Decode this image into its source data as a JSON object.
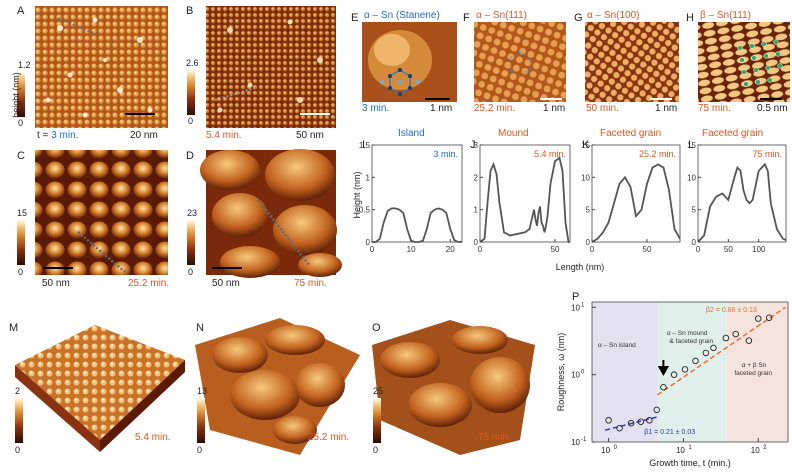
{
  "panels": {
    "A": {
      "letter": "A",
      "cbar_max": "1.2",
      "cbar_min": "0",
      "time": "t = 3 min.",
      "time_prefix": "t = ",
      "time_value": "3 min.",
      "scale": "20 nm",
      "cbar_title": "height (nm)"
    },
    "B": {
      "letter": "B",
      "cbar_max": "2.6",
      "cbar_min": "0",
      "time": "5.4 min.",
      "scale": "50 nm"
    },
    "C": {
      "letter": "C",
      "cbar_max": "15",
      "cbar_min": "0",
      "time": "25.2 min.",
      "scale": "50 nm"
    },
    "D": {
      "letter": "D",
      "cbar_max": "23",
      "cbar_min": "0",
      "time": "75 min.",
      "scale": "50 nm"
    },
    "E": {
      "letter": "E",
      "title": "α – Sn (Stanene)",
      "time": "3 min.",
      "scale": "1 nm"
    },
    "F": {
      "letter": "F",
      "title": "α – Sn(111)",
      "time": "25.2 min.",
      "scale": "1 nm"
    },
    "G": {
      "letter": "G",
      "title": "α – Sn(100)",
      "time": "50 min.",
      "scale": "1 nm"
    },
    "H": {
      "letter": "H",
      "title": "β – Sn(111)",
      "time": "75 min.",
      "scale": "0.5 nm"
    },
    "M": {
      "letter": "M",
      "cbar_max": "2",
      "cbar_min": "0",
      "time": "5.4 min."
    },
    "N": {
      "letter": "N",
      "cbar_max": "13",
      "cbar_min": "0",
      "time": "25.2 min."
    },
    "O": {
      "letter": "O",
      "cbar_max": "25",
      "cbar_min": "0",
      "time": "75 min."
    }
  },
  "profiles": {
    "ylabel": "Height (nm)",
    "xlabel": "Length (nm)",
    "I": {
      "letter": "I",
      "title": "Island",
      "time": "3 min."
    },
    "J": {
      "letter": "J",
      "title": "Mound",
      "time": "5.4 min."
    },
    "K": {
      "letter": "K",
      "title": "Faceted grain",
      "time": "25.2 min."
    },
    "L": {
      "letter": "L",
      "title": "Faceted grain",
      "time": "75 min."
    }
  },
  "chart_data": [
    {
      "type": "line",
      "panel": "I",
      "title": "Island",
      "xlabel": "Length (nm)",
      "ylabel": "Height (nm)",
      "xlim": [
        0,
        23
      ],
      "ylim": [
        0,
        1.5
      ],
      "xticks": [
        0,
        10,
        20
      ],
      "yticks": [
        0,
        0.5,
        1,
        1.5
      ],
      "x": [
        0,
        1,
        2,
        3,
        4,
        5,
        6,
        7,
        8,
        9,
        10,
        11,
        12,
        13,
        14,
        15,
        16,
        17,
        18,
        19,
        20,
        21,
        22,
        23
      ],
      "y": [
        0.0,
        0.0,
        0.05,
        0.3,
        0.48,
        0.52,
        0.52,
        0.5,
        0.45,
        0.2,
        0.02,
        0.0,
        0.0,
        0.02,
        0.2,
        0.45,
        0.5,
        0.52,
        0.5,
        0.45,
        0.2,
        0.03,
        0.0,
        0.0
      ]
    },
    {
      "type": "line",
      "panel": "J",
      "title": "Mound",
      "xlabel": "Length (nm)",
      "ylabel": "",
      "xlim": [
        0,
        60
      ],
      "ylim": [
        0,
        3
      ],
      "xticks": [
        0,
        50
      ],
      "yticks": [
        0,
        1,
        2,
        3
      ],
      "x": [
        0,
        3,
        5,
        7,
        9,
        11,
        13,
        16,
        20,
        25,
        30,
        33,
        35,
        36,
        37,
        38,
        39,
        40,
        41,
        42,
        43,
        44,
        45,
        47,
        50,
        53,
        55,
        57,
        59,
        60
      ],
      "y": [
        0.0,
        0.1,
        1.2,
        2.2,
        2.4,
        2.1,
        1.2,
        0.3,
        0.2,
        0.25,
        0.3,
        0.4,
        0.8,
        1.0,
        0.7,
        0.5,
        0.9,
        1.1,
        0.6,
        0.5,
        0.3,
        0.5,
        0.8,
        1.8,
        2.5,
        2.6,
        2.2,
        0.6,
        0.0,
        0.0
      ]
    },
    {
      "type": "line",
      "panel": "K",
      "title": "Faceted grain",
      "xlabel": "Length (nm)",
      "ylabel": "",
      "xlim": [
        0,
        80
      ],
      "ylim": [
        0,
        15
      ],
      "xticks": [
        0,
        50
      ],
      "yticks": [
        0,
        5,
        10,
        15
      ],
      "x": [
        0,
        5,
        10,
        15,
        20,
        25,
        30,
        35,
        40,
        45,
        50,
        55,
        60,
        65,
        70,
        75,
        80
      ],
      "y": [
        0.0,
        0.5,
        1.5,
        3.0,
        6.0,
        9.0,
        10.0,
        8.5,
        4.0,
        5.0,
        9.0,
        11.5,
        12.0,
        11.5,
        8.0,
        2.0,
        0.5
      ]
    },
    {
      "type": "line",
      "panel": "L",
      "title": "Faceted grain",
      "xlabel": "Length (nm)",
      "ylabel": "",
      "xlim": [
        0,
        145
      ],
      "ylim": [
        0,
        15
      ],
      "xticks": [
        0,
        50,
        100
      ],
      "yticks": [
        0,
        5,
        10,
        15
      ],
      "x": [
        0,
        10,
        20,
        30,
        40,
        50,
        60,
        65,
        70,
        75,
        80,
        85,
        90,
        100,
        110,
        115,
        120,
        130,
        140,
        145
      ],
      "y": [
        0.0,
        1.0,
        5.5,
        7.0,
        7.5,
        6.5,
        10.0,
        11.5,
        11.0,
        8.0,
        6.5,
        6.0,
        6.5,
        11.0,
        12.0,
        11.0,
        6.0,
        2.0,
        0.5,
        0.3
      ]
    },
    {
      "type": "scatter",
      "panel": "P",
      "xlabel": "Growth time, t (min.)",
      "ylabel": "Roughness, ω (nm)",
      "xscale": "log",
      "yscale": "log",
      "xlim": [
        0.6,
        250
      ],
      "ylim": [
        0.1,
        12
      ],
      "xtick_labels": [
        "10^0",
        "10^1",
        "10^2"
      ],
      "ytick_labels": [
        "10^-1",
        "10^0",
        "10^1"
      ],
      "regions": [
        {
          "label": "α – Sn island",
          "from": 0.6,
          "to": 4.5
        },
        {
          "label": "α – Sn mound & faceted grain",
          "from": 4.5,
          "to": 38
        },
        {
          "label": "α + β Sn faceted grain",
          "from": 38,
          "to": 250
        }
      ],
      "series": [
        {
          "x": [
            1.0,
            1.4,
            2.0,
            2.7,
            3.5,
            4.4,
            5.4,
            7.5,
            10.5,
            14.5,
            20,
            25.2,
            37,
            50,
            75,
            100,
            140
          ],
          "y": [
            0.21,
            0.16,
            0.19,
            0.2,
            0.21,
            0.3,
            0.65,
            1.0,
            1.2,
            1.6,
            2.1,
            2.5,
            3.5,
            4.0,
            3.2,
            6.8,
            7.0
          ]
        }
      ],
      "fits": [
        {
          "label": "β2 = 0.66 ± 0.13",
          "x": [
            4.5,
            230
          ],
          "y": [
            0.5,
            10
          ]
        },
        {
          "label": "β1 = 0.21 ± 0.03",
          "x": [
            0.9,
            4.8
          ],
          "y": [
            0.15,
            0.24
          ]
        }
      ],
      "arrow_at": 5.4
    }
  ],
  "plot_P": {
    "letter": "P",
    "region1": "α – Sn island",
    "region2a": "α – Sn mound",
    "region2b": "& faceted grain",
    "region3a": "α + β Sn",
    "region3b": "faceted grain",
    "beta2": "β2 = 0.66 ± 0.13",
    "beta1": "β1 = 0.21 ± 0.03",
    "xlabel": "Growth time, t (min.)",
    "ylabel": "Roughness, ω (nm)",
    "xt0": "10",
    "xt1": "10",
    "xt2": "10",
    "xe0": "0",
    "xe1": "1",
    "xe2": "2",
    "yt0": "10",
    "yt1": "10",
    "yt2": "10",
    "ye0": "-1",
    "ye1": "0",
    "ye2": "1"
  }
}
